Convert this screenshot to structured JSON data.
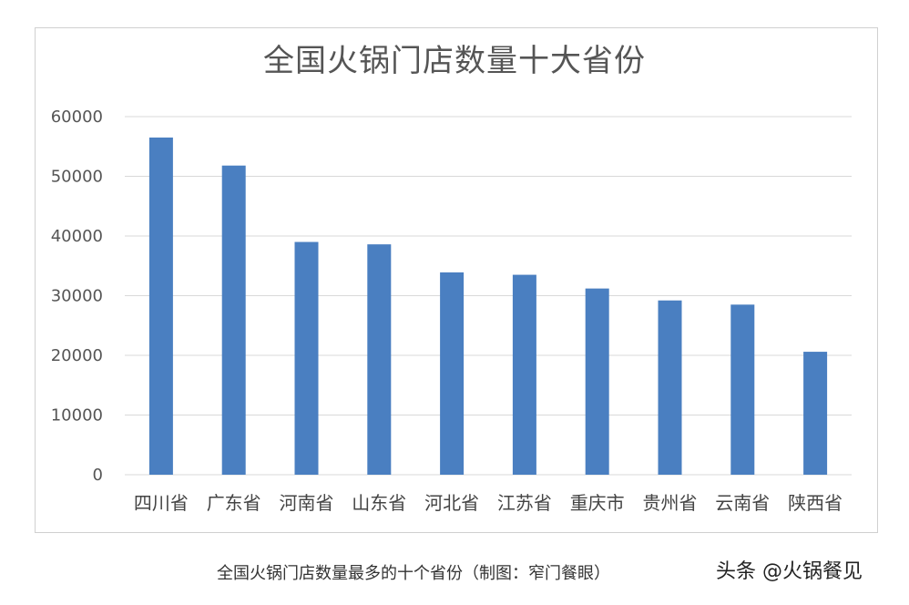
{
  "chart_data": {
    "type": "bar",
    "title": "全国火锅门店数量十大省份",
    "categories": [
      "四川省",
      "广东省",
      "河南省",
      "山东省",
      "河北省",
      "江苏省",
      "重庆市",
      "贵州省",
      "云南省",
      "陕西省"
    ],
    "values": [
      56500,
      51800,
      39000,
      38600,
      33900,
      33500,
      31200,
      29200,
      28500,
      20600
    ],
    "yticks": [
      "0",
      "10000",
      "20000",
      "30000",
      "40000",
      "50000",
      "60000"
    ],
    "ylim": [
      0,
      60000
    ],
    "grid": true,
    "legend": "none",
    "bar_color": "#4a7fc1",
    "grid_color": "#d9d9d9"
  },
  "caption": "全国火锅门店数量最多的十个省份（制图：窄门餐眼）",
  "watermark": "头条 @火锅餐见"
}
